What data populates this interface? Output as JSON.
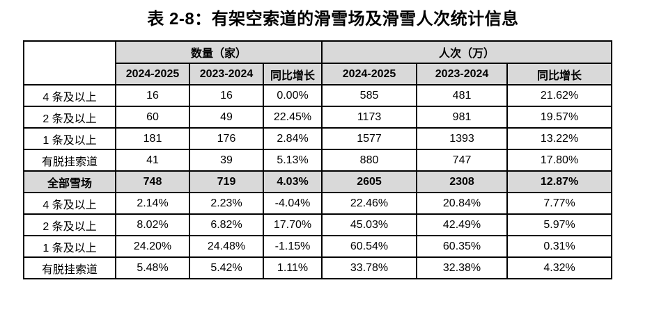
{
  "title": "表 2-8：有架空索道的滑雪场及滑雪人次统计信息",
  "table": {
    "col_groups": [
      {
        "label": "数量（家）"
      },
      {
        "label": "人次（万）"
      }
    ],
    "sub_headers": [
      "2024-2025",
      "2023-2024",
      "同比增长",
      "2024-2025",
      "2023-2024",
      "同比增长"
    ],
    "rows": [
      {
        "label": "4 条及以上",
        "total": false,
        "values": [
          "16",
          "16",
          "0.00%",
          "585",
          "481",
          "21.62%"
        ]
      },
      {
        "label": "2 条及以上",
        "total": false,
        "values": [
          "60",
          "49",
          "22.45%",
          "1173",
          "981",
          "19.57%"
        ]
      },
      {
        "label": "1 条及以上",
        "total": false,
        "values": [
          "181",
          "176",
          "2.84%",
          "1577",
          "1393",
          "13.22%"
        ]
      },
      {
        "label": "有脱挂索道",
        "total": false,
        "values": [
          "41",
          "39",
          "5.13%",
          "880",
          "747",
          "17.80%"
        ]
      },
      {
        "label": "全部雪场",
        "total": true,
        "values": [
          "748",
          "719",
          "4.03%",
          "2605",
          "2308",
          "12.87%"
        ]
      },
      {
        "label": "4 条及以上",
        "total": false,
        "values": [
          "2.14%",
          "2.23%",
          "-4.04%",
          "22.46%",
          "20.84%",
          "7.77%"
        ]
      },
      {
        "label": "2 条及以上",
        "total": false,
        "values": [
          "8.02%",
          "6.82%",
          "17.70%",
          "45.03%",
          "42.49%",
          "5.97%"
        ]
      },
      {
        "label": "1 条及以上",
        "total": false,
        "values": [
          "24.20%",
          "24.48%",
          "-1.15%",
          "60.54%",
          "60.35%",
          "0.31%"
        ]
      },
      {
        "label": "有脱挂索道",
        "total": false,
        "values": [
          "5.48%",
          "5.42%",
          "1.11%",
          "33.78%",
          "32.38%",
          "4.32%"
        ]
      }
    ],
    "colors": {
      "header_bg": "#d9d9d9",
      "total_row_bg": "#d9d9d9",
      "border": "#000000",
      "text": "#000000"
    }
  }
}
